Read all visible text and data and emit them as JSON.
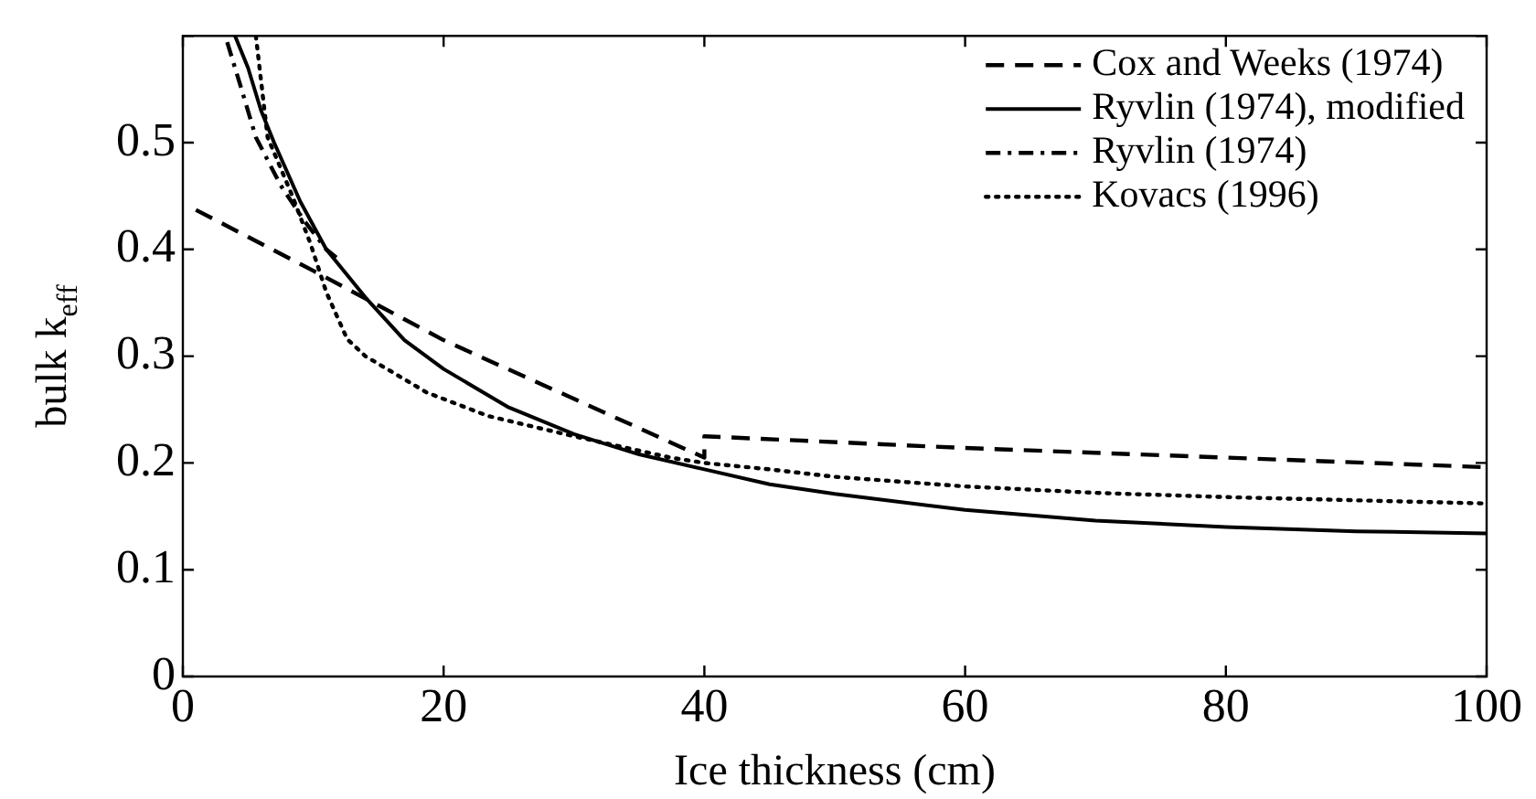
{
  "chart_data": {
    "type": "line",
    "xlabel": "Ice thickness (cm)",
    "ylabel": "bulk k$_{eff}$",
    "xlim": [
      0,
      100
    ],
    "xticks": [
      0,
      20,
      40,
      60,
      80,
      100
    ],
    "ylim": [
      0,
      0.6
    ],
    "yticks": [
      0,
      0.1,
      0.2,
      0.3,
      0.4,
      0.5,
      {
        "value": 0.6,
        "label": null
      }
    ],
    "grid": false,
    "legend": "top right",
    "marker": "none",
    "series": [
      {
        "name": "Cox and Weeks (1974)",
        "color": "#000000",
        "line_style": "dashed",
        "x": [
          1,
          10,
          20,
          30,
          40,
          40,
          60,
          80,
          100
        ],
        "values": [
          0.437,
          0.38,
          0.315,
          0.26,
          0.205,
          0.225,
          0.214,
          0.205,
          0.196
        ]
      },
      {
        "name": "Ryvlin (1974), modified",
        "color": "#000000",
        "line_style": "solid",
        "x": [
          4,
          5,
          6,
          7,
          9,
          11,
          14,
          17,
          20,
          25,
          30,
          35,
          40,
          45,
          50,
          60,
          70,
          80,
          90,
          100
        ],
        "values": [
          0.6,
          0.57,
          0.53,
          0.5,
          0.445,
          0.4,
          0.355,
          0.315,
          0.288,
          0.252,
          0.227,
          0.208,
          0.194,
          0.18,
          0.171,
          0.156,
          0.146,
          0.14,
          0.136,
          0.134
        ]
      },
      {
        "name": "Ryvlin (1974)",
        "color": "#000000",
        "line_style": "dashdot",
        "x": [
          3.4,
          4.5,
          5.6,
          7.5,
          9.3,
          11,
          12
        ],
        "values": [
          0.594,
          0.55,
          0.505,
          0.46,
          0.427,
          0.4,
          0.39
        ]
      },
      {
        "name": "Kovacs (1996)",
        "color": "#000000",
        "line_style": "dotted",
        "x": [
          5.6,
          6.5,
          8.4,
          9.8,
          11,
          12.6,
          14,
          18.7,
          23.4,
          30,
          37.4,
          40,
          45,
          50,
          60,
          70,
          80,
          90,
          100
        ],
        "values": [
          0.6,
          0.505,
          0.45,
          0.405,
          0.36,
          0.316,
          0.3,
          0.266,
          0.244,
          0.225,
          0.205,
          0.2,
          0.194,
          0.187,
          0.178,
          0.172,
          0.168,
          0.165,
          0.162
        ]
      }
    ]
  }
}
